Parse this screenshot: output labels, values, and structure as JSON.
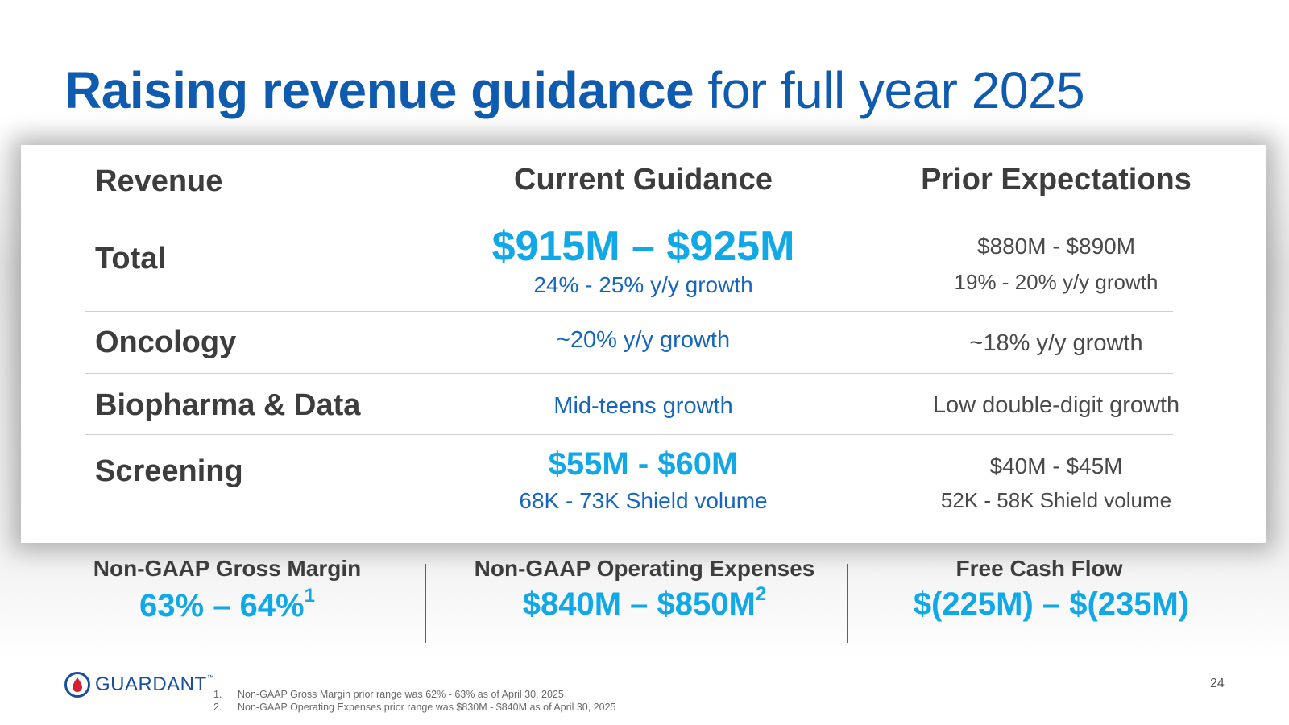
{
  "title": {
    "bold": "Raising revenue guidance",
    "light": "for full year 2025"
  },
  "table": {
    "headers": {
      "revenue": "Revenue",
      "current": "Current Guidance",
      "prior": "Prior Expectations"
    },
    "rows": {
      "total": {
        "label": "Total",
        "current_main": "$915M – $925M",
        "current_sub": "24% - 25% y/y growth",
        "prior_main": "$880M - $890M",
        "prior_sub": "19% - 20% y/y growth"
      },
      "oncology": {
        "label": "Oncology",
        "current": "~20% y/y growth",
        "prior": "~18% y/y growth"
      },
      "biopharma": {
        "label": "Biopharma & Data",
        "current": "Mid-teens growth",
        "prior": "Low double-digit growth"
      },
      "screening": {
        "label": "Screening",
        "current_main": "$55M - $60M",
        "current_sub": "68K - 73K Shield volume",
        "prior_main": "$40M - $45M",
        "prior_sub": "52K - 58K Shield volume"
      }
    }
  },
  "kpis": {
    "gross_margin": {
      "label": "Non-GAAP Gross Margin",
      "value": "63% – 64%",
      "note": "1"
    },
    "opex": {
      "label": "Non-GAAP Operating Expenses",
      "value": "$840M – $850M",
      "note": "2"
    },
    "fcf": {
      "label": "Free Cash Flow",
      "value": "$(225M) – $(235M)"
    }
  },
  "logo": {
    "text": "GUARDANT",
    "mark": "™"
  },
  "footnotes": [
    {
      "num": "1.",
      "text": "Non-GAAP Gross Margin prior range was 62% - 63% as of April 30, 2025"
    },
    {
      "num": "2.",
      "text": "Non-GAAP Operating Expenses prior range was $830M - $840M as of April 30, 2025"
    }
  ],
  "page_number": "24",
  "colors": {
    "title_blue": "#0f5bb0",
    "accent_cyan": "#10a8e6",
    "text_blue": "#1666bd",
    "dark_gray": "#3d3d3d"
  }
}
